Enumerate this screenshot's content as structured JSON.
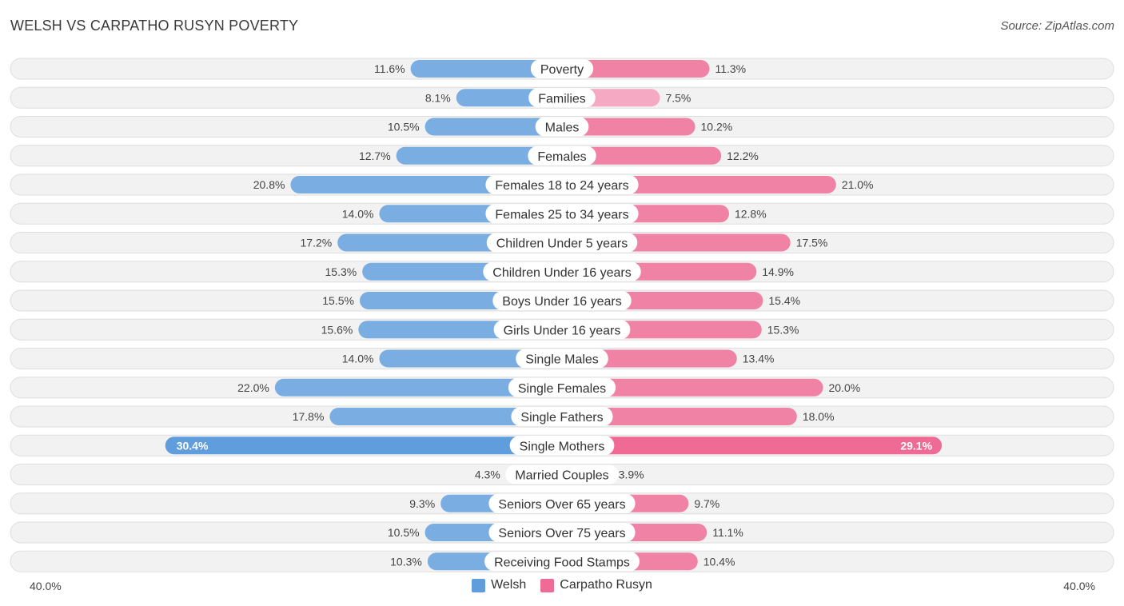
{
  "title": "WELSH VS CARPATHO RUSYN POVERTY",
  "source": "Source: ZipAtlas.com",
  "colors": {
    "welsh": "#7aaee2",
    "welsh_light": "#a9c9ec",
    "welsh_strong": "#5f9ddc",
    "rusyn": "#f082a6",
    "rusyn_light": "#f5a9c3",
    "rusyn_strong": "#ef6b96"
  },
  "legend": {
    "welsh": "Welsh",
    "rusyn": "Carpatho Rusyn"
  },
  "axis": {
    "left_label": "40.0%",
    "right_label": "40.0%"
  },
  "chart_data": {
    "type": "bar",
    "orientation": "horizontal-diverging",
    "title": "WELSH VS CARPATHO RUSYN POVERTY",
    "xlim": [
      -40,
      40
    ],
    "categories": [
      "Poverty",
      "Families",
      "Males",
      "Females",
      "Females 18 to 24 years",
      "Females 25 to 34 years",
      "Children Under 5 years",
      "Children Under 16 years",
      "Boys Under 16 years",
      "Girls Under 16 years",
      "Single Males",
      "Single Females",
      "Single Fathers",
      "Single Mothers",
      "Married Couples",
      "Seniors Over 65 years",
      "Seniors Over 75 years",
      "Receiving Food Stamps"
    ],
    "series": [
      {
        "name": "Welsh",
        "side": "left",
        "values": [
          11.6,
          8.1,
          10.5,
          12.7,
          20.8,
          14.0,
          17.2,
          15.3,
          15.5,
          15.6,
          14.0,
          22.0,
          17.8,
          30.4,
          4.3,
          9.3,
          10.5,
          10.3
        ],
        "labels": [
          "11.6%",
          "8.1%",
          "10.5%",
          "12.7%",
          "20.8%",
          "14.0%",
          "17.2%",
          "15.3%",
          "15.5%",
          "15.6%",
          "14.0%",
          "22.0%",
          "17.8%",
          "30.4%",
          "4.3%",
          "9.3%",
          "10.5%",
          "10.3%"
        ]
      },
      {
        "name": "Carpatho Rusyn",
        "side": "right",
        "values": [
          11.3,
          7.5,
          10.2,
          12.2,
          21.0,
          12.8,
          17.5,
          14.9,
          15.4,
          15.3,
          13.4,
          20.0,
          18.0,
          29.1,
          3.9,
          9.7,
          11.1,
          10.4
        ],
        "labels": [
          "11.3%",
          "7.5%",
          "10.2%",
          "12.2%",
          "21.0%",
          "12.8%",
          "17.5%",
          "14.9%",
          "15.4%",
          "15.3%",
          "13.4%",
          "20.0%",
          "18.0%",
          "29.1%",
          "3.9%",
          "9.7%",
          "11.1%",
          "10.4%"
        ]
      }
    ]
  }
}
